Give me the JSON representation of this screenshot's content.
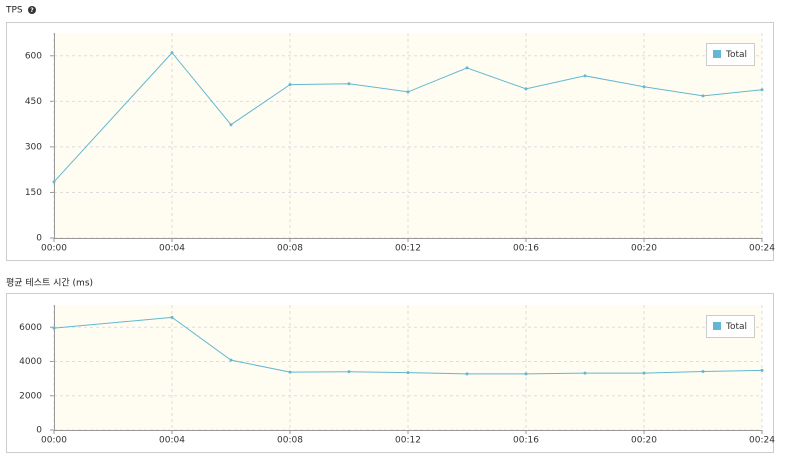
{
  "chart_data": [
    {
      "type": "line",
      "title": "TPS",
      "x": [
        0,
        4,
        6,
        8,
        10,
        12,
        14,
        16,
        18,
        20,
        22,
        24
      ],
      "series": [
        {
          "name": "Total",
          "color": "#62b8d0",
          "values": [
            185,
            610,
            373,
            505,
            508,
            481,
            560,
            491,
            534,
            498,
            468,
            488
          ]
        }
      ],
      "xlim": [
        0,
        24
      ],
      "xticks": [
        {
          "value": 0,
          "label": "00:00"
        },
        {
          "value": 4,
          "label": "00:04"
        },
        {
          "value": 8,
          "label": "00:08"
        },
        {
          "value": 12,
          "label": "00:12"
        },
        {
          "value": 16,
          "label": "00:16"
        },
        {
          "value": 20,
          "label": "00:20"
        },
        {
          "value": 24,
          "label": "00:24"
        }
      ],
      "ylim": [
        0,
        675
      ],
      "yticks": [
        0,
        150,
        300,
        450,
        600
      ],
      "grid": true,
      "legend": "top-right"
    },
    {
      "type": "line",
      "title": "평균 테스트 시간 (ms)",
      "x": [
        0,
        4,
        6,
        8,
        10,
        12,
        14,
        16,
        18,
        20,
        22,
        24
      ],
      "series": [
        {
          "name": "Total",
          "color": "#62b8d0",
          "values": [
            5950,
            6580,
            4080,
            3380,
            3400,
            3350,
            3280,
            3280,
            3320,
            3320,
            3420,
            3480
          ]
        }
      ],
      "xlim": [
        0,
        24
      ],
      "xticks": [
        {
          "value": 0,
          "label": "00:00"
        },
        {
          "value": 4,
          "label": "00:04"
        },
        {
          "value": 8,
          "label": "00:08"
        },
        {
          "value": 12,
          "label": "00:12"
        },
        {
          "value": 16,
          "label": "00:16"
        },
        {
          "value": 20,
          "label": "00:20"
        },
        {
          "value": 24,
          "label": "00:24"
        }
      ],
      "ylim": [
        0,
        7300
      ],
      "yticks": [
        0,
        2000,
        4000,
        6000
      ],
      "grid": true,
      "legend": "top-right"
    }
  ]
}
